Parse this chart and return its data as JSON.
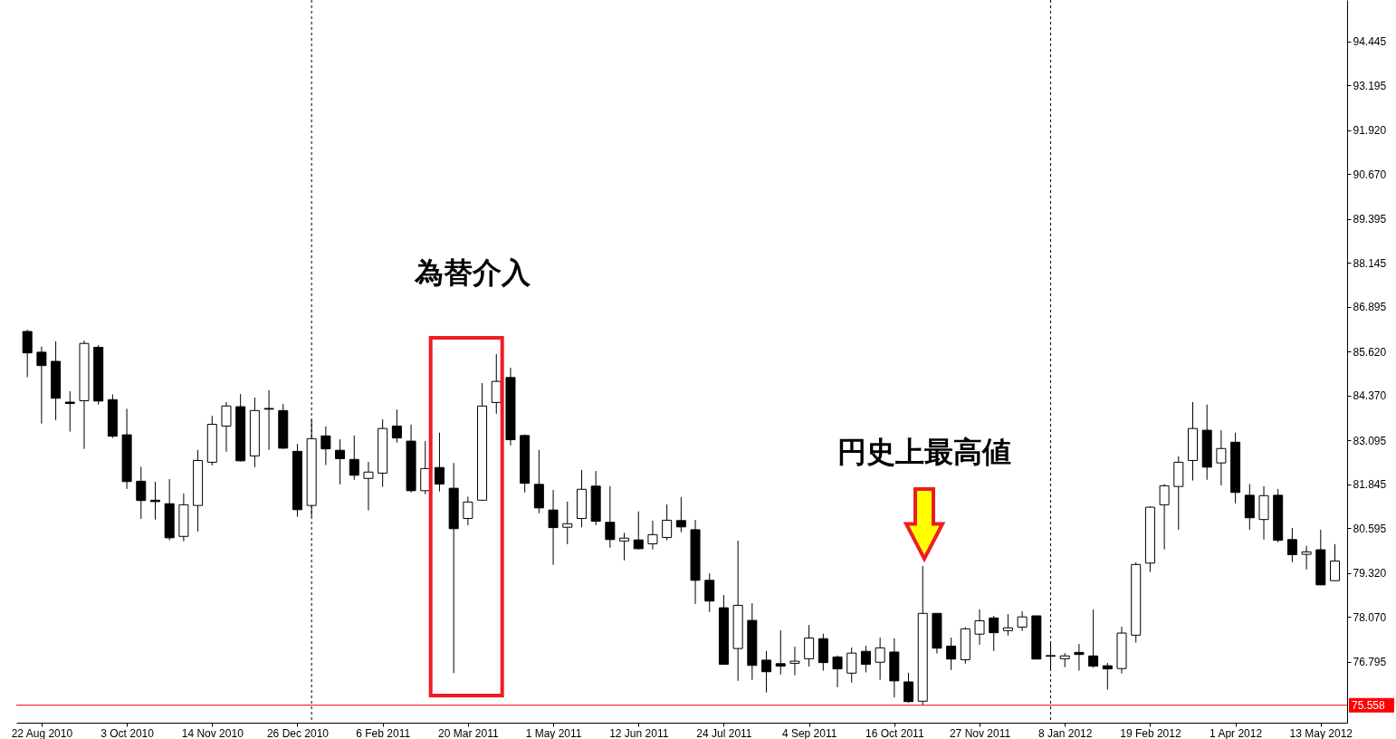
{
  "chart_data": {
    "type": "candlestick",
    "x": [
      "2010-08-15",
      "2010-08-22",
      "2010-08-29",
      "2010-09-05",
      "2010-09-12",
      "2010-09-19",
      "2010-09-26",
      "2010-10-03",
      "2010-10-10",
      "2010-10-17",
      "2010-10-24",
      "2010-10-31",
      "2010-11-07",
      "2010-11-14",
      "2010-11-21",
      "2010-11-28",
      "2010-12-05",
      "2010-12-12",
      "2010-12-19",
      "2010-12-26",
      "2011-01-02",
      "2011-01-09",
      "2011-01-16",
      "2011-01-23",
      "2011-01-30",
      "2011-02-06",
      "2011-02-13",
      "2011-02-20",
      "2011-02-27",
      "2011-03-06",
      "2011-03-13",
      "2011-03-20",
      "2011-03-27",
      "2011-04-03",
      "2011-04-10",
      "2011-04-17",
      "2011-04-24",
      "2011-05-01",
      "2011-05-08",
      "2011-05-15",
      "2011-05-22",
      "2011-05-29",
      "2011-06-05",
      "2011-06-12",
      "2011-06-19",
      "2011-06-26",
      "2011-07-03",
      "2011-07-10",
      "2011-07-17",
      "2011-07-24",
      "2011-07-31",
      "2011-08-07",
      "2011-08-14",
      "2011-08-21",
      "2011-08-28",
      "2011-09-04",
      "2011-09-11",
      "2011-09-18",
      "2011-09-25",
      "2011-10-02",
      "2011-10-09",
      "2011-10-16",
      "2011-10-23",
      "2011-10-30",
      "2011-11-06",
      "2011-11-13",
      "2011-11-20",
      "2011-11-27",
      "2011-12-04",
      "2011-12-11",
      "2011-12-18",
      "2011-12-25",
      "2012-01-01",
      "2012-01-08",
      "2012-01-15",
      "2012-01-22",
      "2012-01-29",
      "2012-02-05",
      "2012-02-12",
      "2012-02-19",
      "2012-02-26",
      "2012-03-04",
      "2012-03-11",
      "2012-03-18",
      "2012-03-25",
      "2012-04-01",
      "2012-04-08",
      "2012-04-15",
      "2012-04-22",
      "2012-04-29",
      "2012-05-06",
      "2012-05-13",
      "2012-05-20"
    ],
    "ohlc": [
      [
        86.19,
        86.24,
        84.89,
        85.58
      ],
      [
        85.6,
        85.76,
        83.57,
        85.22
      ],
      [
        85.34,
        85.91,
        83.67,
        84.29
      ],
      [
        84.18,
        84.49,
        83.34,
        84.14
      ],
      [
        84.22,
        85.93,
        82.85,
        85.85
      ],
      [
        85.74,
        85.8,
        84.11,
        84.21
      ],
      [
        84.25,
        84.4,
        83.16,
        83.21
      ],
      [
        83.25,
        83.99,
        81.71,
        81.92
      ],
      [
        81.93,
        82.34,
        80.86,
        81.38
      ],
      [
        81.39,
        81.91,
        80.84,
        81.35
      ],
      [
        81.29,
        81.99,
        80.25,
        80.32
      ],
      [
        80.36,
        81.58,
        80.22,
        81.26
      ],
      [
        81.24,
        82.82,
        80.5,
        82.52
      ],
      [
        82.47,
        83.79,
        82.38,
        83.55
      ],
      [
        83.5,
        84.18,
        82.77,
        84.07
      ],
      [
        84.05,
        84.41,
        82.49,
        82.51
      ],
      [
        82.65,
        84.31,
        82.33,
        83.94
      ],
      [
        84.0,
        84.52,
        82.82,
        83.98
      ],
      [
        83.94,
        84.13,
        82.85,
        82.87
      ],
      [
        82.78,
        82.99,
        80.92,
        81.12
      ],
      [
        81.24,
        83.68,
        80.92,
        83.14
      ],
      [
        83.22,
        83.49,
        82.39,
        82.85
      ],
      [
        82.81,
        83.12,
        81.84,
        82.57
      ],
      [
        82.55,
        83.23,
        81.97,
        82.1
      ],
      [
        82.01,
        82.48,
        81.1,
        82.19
      ],
      [
        82.16,
        83.69,
        81.77,
        83.43
      ],
      [
        83.5,
        83.97,
        83.03,
        83.16
      ],
      [
        83.07,
        83.54,
        81.61,
        81.66
      ],
      [
        81.66,
        83.07,
        81.56,
        82.29
      ],
      [
        82.32,
        83.31,
        81.64,
        81.85
      ],
      [
        81.73,
        82.45,
        76.47,
        80.58
      ],
      [
        80.87,
        81.49,
        80.68,
        81.34
      ],
      [
        81.39,
        84.72,
        81.39,
        84.07
      ],
      [
        84.17,
        85.55,
        83.85,
        84.77
      ],
      [
        84.88,
        85.16,
        82.95,
        83.11
      ],
      [
        83.23,
        83.26,
        81.61,
        81.87
      ],
      [
        81.84,
        82.82,
        81.02,
        81.17
      ],
      [
        81.11,
        81.68,
        79.55,
        80.61
      ],
      [
        80.62,
        81.35,
        80.14,
        80.72
      ],
      [
        80.87,
        82.25,
        80.62,
        81.7
      ],
      [
        81.79,
        82.22,
        80.68,
        80.79
      ],
      [
        80.76,
        81.79,
        80.04,
        80.27
      ],
      [
        80.23,
        80.46,
        79.68,
        80.31
      ],
      [
        80.26,
        81.07,
        79.99,
        80.01
      ],
      [
        80.15,
        80.81,
        79.99,
        80.41
      ],
      [
        80.33,
        81.27,
        80.25,
        80.82
      ],
      [
        80.81,
        81.48,
        80.48,
        80.63
      ],
      [
        80.55,
        80.83,
        78.44,
        79.11
      ],
      [
        79.11,
        79.31,
        78.21,
        78.52
      ],
      [
        78.33,
        78.69,
        76.72,
        76.72
      ],
      [
        77.17,
        80.24,
        76.25,
        78.4
      ],
      [
        77.97,
        78.46,
        76.28,
        76.69
      ],
      [
        76.84,
        77.1,
        75.92,
        76.51
      ],
      [
        76.74,
        77.69,
        76.43,
        76.67
      ],
      [
        76.75,
        77.22,
        76.41,
        76.81
      ],
      [
        76.88,
        77.84,
        76.66,
        77.47
      ],
      [
        77.45,
        77.59,
        76.54,
        76.77
      ],
      [
        76.93,
        76.97,
        76.07,
        76.59
      ],
      [
        76.47,
        77.2,
        76.2,
        77.04
      ],
      [
        77.09,
        77.25,
        76.49,
        76.72
      ],
      [
        76.78,
        77.48,
        76.28,
        77.19
      ],
      [
        77.07,
        77.46,
        75.78,
        76.25
      ],
      [
        76.22,
        76.48,
        75.63,
        75.66
      ],
      [
        75.67,
        79.52,
        75.55,
        78.17
      ],
      [
        78.17,
        78.17,
        77.03,
        77.18
      ],
      [
        77.24,
        77.48,
        76.56,
        76.87
      ],
      [
        76.85,
        77.78,
        76.74,
        77.73
      ],
      [
        77.58,
        78.28,
        77.28,
        77.96
      ],
      [
        78.04,
        78.1,
        77.1,
        77.62
      ],
      [
        77.68,
        78.15,
        77.54,
        77.76
      ],
      [
        77.78,
        78.23,
        77.67,
        78.07
      ],
      [
        78.1,
        78.1,
        76.87,
        76.87
      ],
      [
        76.97,
        77.33,
        76.6,
        76.95
      ],
      [
        76.88,
        77.04,
        76.64,
        76.96
      ],
      [
        77.06,
        77.3,
        76.54,
        77.0
      ],
      [
        76.96,
        78.28,
        76.62,
        76.67
      ],
      [
        76.68,
        76.76,
        76.0,
        76.59
      ],
      [
        76.6,
        77.79,
        76.46,
        77.61
      ],
      [
        77.55,
        79.62,
        77.34,
        79.56
      ],
      [
        79.6,
        81.22,
        79.35,
        81.19
      ],
      [
        81.26,
        81.85,
        79.99,
        81.8
      ],
      [
        81.78,
        82.64,
        80.55,
        82.47
      ],
      [
        82.52,
        84.18,
        81.95,
        83.43
      ],
      [
        83.38,
        84.11,
        81.97,
        82.33
      ],
      [
        82.45,
        83.38,
        81.81,
        82.86
      ],
      [
        83.04,
        83.31,
        81.3,
        81.61
      ],
      [
        81.53,
        81.85,
        80.55,
        80.89
      ],
      [
        80.84,
        81.79,
        80.27,
        81.52
      ],
      [
        81.53,
        81.71,
        80.19,
        80.25
      ],
      [
        80.27,
        80.6,
        79.63,
        79.84
      ],
      [
        79.85,
        80.09,
        79.42,
        79.92
      ],
      [
        79.98,
        80.55,
        78.98,
        78.98
      ],
      [
        79.1,
        80.14,
        79.1,
        79.66
      ]
    ],
    "xlim": [
      "2010-08-11T19:00",
      "2012-05-23T19:00"
    ],
    "xticks": [
      {
        "value": "2010-08-22",
        "label": "22 Aug 2010"
      },
      {
        "value": "2010-10-03",
        "label": "3 Oct 2010"
      },
      {
        "value": "2010-11-14",
        "label": "14 Nov 2010"
      },
      {
        "value": "2010-12-26",
        "label": "26 Dec 2010"
      },
      {
        "value": "2011-02-06",
        "label": "6 Feb 2011"
      },
      {
        "value": "2011-03-20",
        "label": "20 Mar 2011"
      },
      {
        "value": "2011-05-01",
        "label": "1 May 2011"
      },
      {
        "value": "2011-06-12",
        "label": "12 Jun 2011"
      },
      {
        "value": "2011-07-24",
        "label": "24 Jul 2011"
      },
      {
        "value": "2011-09-04",
        "label": "4 Sep 2011"
      },
      {
        "value": "2011-10-16",
        "label": "16 Oct 2011"
      },
      {
        "value": "2011-11-27",
        "label": "27 Nov 2011"
      },
      {
        "value": "2012-01-08",
        "label": "8 Jan 2012"
      },
      {
        "value": "2012-02-19",
        "label": "19 Feb 2012"
      },
      {
        "value": "2012-04-01",
        "label": "1 Apr 2012"
      },
      {
        "value": "2012-05-13",
        "label": "13 May 2012"
      }
    ],
    "ylim": [
      75.06,
      95.62
    ],
    "yticks": [
      94.445,
      93.195,
      {
        "value": 91.92,
        "label": "91.920"
      },
      {
        "value": 90.67,
        "label": "90.670"
      },
      89.395,
      88.145,
      86.895,
      {
        "value": 85.62,
        "label": "85.620"
      },
      {
        "value": 84.37,
        "label": "84.370"
      },
      83.095,
      81.845,
      80.595,
      {
        "value": 79.32,
        "label": "79.320"
      },
      {
        "value": 78.07,
        "label": "78.070"
      },
      76.795
    ],
    "grid": false,
    "ref_lines": [
      {
        "axis": "x",
        "value": "2011-01-02",
        "line_style": "dashed",
        "color": "#000000"
      },
      {
        "axis": "x",
        "value": "2012-01-01",
        "line_style": "dashed",
        "color": "#000000"
      },
      {
        "axis": "y",
        "value": 75.558,
        "label": "75.558",
        "color": "#ff0000"
      }
    ],
    "annotations": [
      "為替介入",
      "円史上最高値"
    ]
  }
}
